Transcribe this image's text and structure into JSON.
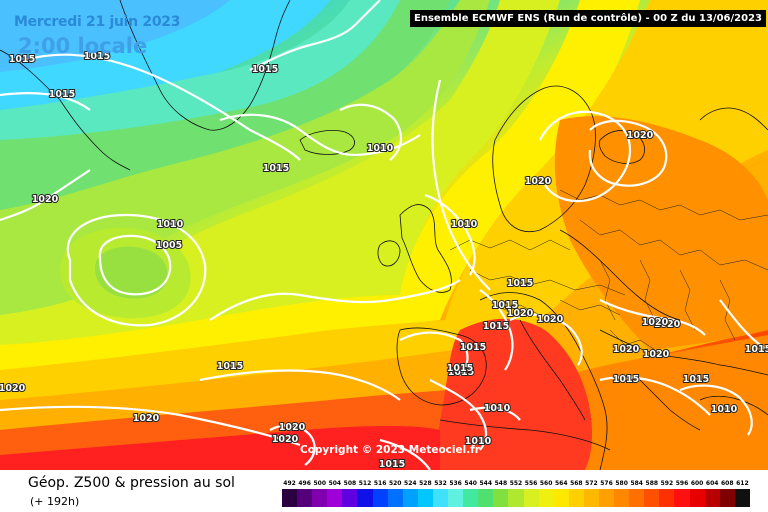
{
  "header": {
    "date": "Mercredi 21 juin 2023",
    "local_time": "2:00 locale",
    "run": "Ensemble ECMWF ENS  (Run de contrôle)  - 00 Z du 13/06/2023"
  },
  "footer": {
    "parameter": "Géop. Z500 & pression au sol",
    "lead_time": "(+ 192h)",
    "copyright": "Copyright © 2023 Meteociel.fr"
  },
  "map": {
    "isobar_labels": [
      {
        "id": "gl-1",
        "text": "1015"
      },
      {
        "id": "gl-2",
        "text": "1015"
      },
      {
        "id": "gl-3",
        "text": "1015"
      },
      {
        "id": "gl-4",
        "text": "1015"
      },
      {
        "id": "atl-n",
        "text": "1015"
      },
      {
        "id": "atl-1010",
        "text": "1010"
      },
      {
        "id": "atl-w1020",
        "text": "1020"
      },
      {
        "id": "low-1010",
        "text": "1010"
      },
      {
        "id": "low-1005",
        "text": "1005"
      },
      {
        "id": "uk-1010",
        "text": "1010"
      },
      {
        "id": "scan-1020",
        "text": "1020"
      },
      {
        "id": "balt-1020",
        "text": "1020"
      },
      {
        "id": "fr-1015",
        "text": "1015"
      },
      {
        "id": "fr-1015b",
        "text": "1015"
      },
      {
        "id": "alps-1020",
        "text": "1020"
      },
      {
        "id": "ib-1015",
        "text": "1015"
      },
      {
        "id": "ib-1015b",
        "text": "1015"
      },
      {
        "id": "ib-1015c",
        "text": "1015"
      },
      {
        "id": "sp-1015",
        "text": "1015"
      },
      {
        "id": "sp-1010",
        "text": "1010"
      },
      {
        "id": "mor-1010",
        "text": "1010"
      },
      {
        "id": "afr-1015",
        "text": "1015"
      },
      {
        "id": "w-1020",
        "text": "1020"
      },
      {
        "id": "sw-1020",
        "text": "1020"
      },
      {
        "id": "sw-1020b",
        "text": "1020"
      },
      {
        "id": "sw-1020c",
        "text": "1020"
      },
      {
        "id": "atl-s1015",
        "text": "1015"
      },
      {
        "id": "e-1020",
        "text": "1020"
      },
      {
        "id": "e-1020b",
        "text": "1020"
      },
      {
        "id": "bal-1020",
        "text": "1020"
      },
      {
        "id": "bal-1020b",
        "text": "1020"
      },
      {
        "id": "e-1015",
        "text": "1015"
      },
      {
        "id": "tur-1015",
        "text": "1015"
      },
      {
        "id": "tur-1010",
        "text": "1010"
      },
      {
        "id": "it-1020",
        "text": "1020"
      },
      {
        "id": "ne-1015",
        "text": "1015"
      }
    ]
  },
  "color_scale": {
    "labels": [
      "492",
      "496",
      "500",
      "504",
      "508",
      "512",
      "516",
      "520",
      "524",
      "528",
      "532",
      "536",
      "540",
      "544",
      "548",
      "552",
      "556",
      "560",
      "564",
      "568",
      "572",
      "576",
      "580",
      "584",
      "588",
      "592",
      "596",
      "600",
      "604",
      "608",
      "612"
    ],
    "colors": [
      "#2b0040",
      "#55007a",
      "#8000b0",
      "#a000d8",
      "#6000e0",
      "#1010e8",
      "#0040ff",
      "#0070ff",
      "#00a0ff",
      "#00c8ff",
      "#40e0ff",
      "#60f0e0",
      "#40e8a0",
      "#50e070",
      "#80e040",
      "#b0e830",
      "#d8f020",
      "#f0f010",
      "#ffe800",
      "#ffd000",
      "#ffb800",
      "#ffa000",
      "#ff8800",
      "#ff7000",
      "#ff5000",
      "#ff3000",
      "#ff1010",
      "#e80000",
      "#b80000",
      "#800000",
      "#101010"
    ]
  }
}
